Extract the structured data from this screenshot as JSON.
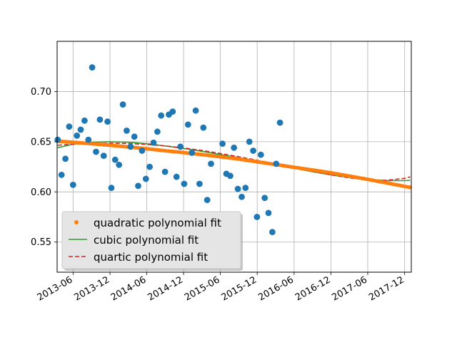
{
  "chart_data": {
    "type": "scatter",
    "ylim": [
      0.52,
      0.75
    ],
    "xlim": [
      "2013-03-14",
      "2018-01-03"
    ],
    "grid": true,
    "legend_position": "lower-left",
    "y_ticks": [
      0.55,
      0.6,
      0.65,
      0.7
    ],
    "y_tick_labels": [
      "0.55",
      "0.60",
      "0.65",
      "0.70"
    ],
    "x_ticks": [
      "2013-06-01",
      "2013-12-01",
      "2014-06-01",
      "2014-12-01",
      "2015-06-01",
      "2015-12-01",
      "2016-06-01",
      "2016-12-01",
      "2017-06-01",
      "2017-12-01"
    ],
    "x_tick_labels": [
      "2013-06",
      "2013-12",
      "2014-06",
      "2014-12",
      "2015-06",
      "2015-12",
      "2016-06",
      "2016-12",
      "2017-06",
      "2017-12"
    ],
    "colors": {
      "points": "#1f77b4",
      "quadratic": "#ff7f0e",
      "cubic": "#2ca02c",
      "quartic": "#d62728",
      "grid": "#b0b0b0"
    },
    "scatter_points": [
      [
        "2013-03-17",
        0.652
      ],
      [
        "2013-04-05",
        0.617
      ],
      [
        "2013-04-24",
        0.633
      ],
      [
        "2013-05-13",
        0.665
      ],
      [
        "2013-06-01",
        0.607
      ],
      [
        "2013-06-20",
        0.656
      ],
      [
        "2013-07-09",
        0.662
      ],
      [
        "2013-07-28",
        0.671
      ],
      [
        "2013-08-16",
        0.652
      ],
      [
        "2013-09-04",
        0.724
      ],
      [
        "2013-09-23",
        0.64
      ],
      [
        "2013-10-12",
        0.672
      ],
      [
        "2013-10-31",
        0.636
      ],
      [
        "2013-11-19",
        0.67
      ],
      [
        "2013-12-08",
        0.604
      ],
      [
        "2013-12-27",
        0.632
      ],
      [
        "2014-01-15",
        0.627
      ],
      [
        "2014-02-03",
        0.687
      ],
      [
        "2014-02-22",
        0.661
      ],
      [
        "2014-03-13",
        0.645
      ],
      [
        "2014-04-01",
        0.655
      ],
      [
        "2014-04-20",
        0.606
      ],
      [
        "2014-05-09",
        0.641
      ],
      [
        "2014-05-28",
        0.613
      ],
      [
        "2014-06-16",
        0.625
      ],
      [
        "2014-07-05",
        0.649
      ],
      [
        "2014-07-24",
        0.66
      ],
      [
        "2014-08-12",
        0.676
      ],
      [
        "2014-08-31",
        0.62
      ],
      [
        "2014-09-19",
        0.677
      ],
      [
        "2014-10-08",
        0.68
      ],
      [
        "2014-10-27",
        0.615
      ],
      [
        "2014-11-15",
        0.645
      ],
      [
        "2014-12-04",
        0.608
      ],
      [
        "2014-12-23",
        0.667
      ],
      [
        "2015-01-11",
        0.639
      ],
      [
        "2015-01-30",
        0.681
      ],
      [
        "2015-02-18",
        0.608
      ],
      [
        "2015-03-09",
        0.664
      ],
      [
        "2015-03-28",
        0.592
      ],
      [
        "2015-04-16",
        0.628
      ],
      [
        "2015-05-05",
        0.568
      ],
      [
        "2015-05-24",
        0.577
      ],
      [
        "2015-06-12",
        0.648
      ],
      [
        "2015-07-01",
        0.618
      ],
      [
        "2015-07-20",
        0.616
      ],
      [
        "2015-08-08",
        0.644
      ],
      [
        "2015-08-27",
        0.603
      ],
      [
        "2015-09-15",
        0.595
      ],
      [
        "2015-10-04",
        0.604
      ],
      [
        "2015-10-23",
        0.65
      ],
      [
        "2015-11-11",
        0.641
      ],
      [
        "2015-11-30",
        0.575
      ],
      [
        "2015-12-19",
        0.637
      ],
      [
        "2016-01-07",
        0.594
      ],
      [
        "2016-01-26",
        0.579
      ],
      [
        "2016-02-14",
        0.56
      ],
      [
        "2016-03-04",
        0.628
      ],
      [
        "2016-03-23",
        0.669
      ]
    ],
    "series": [
      {
        "name": "quadratic polynomial fit",
        "style": "dots",
        "points": [
          [
            "2013-03-17",
            0.6505
          ],
          [
            "2013-06-01",
            0.6495
          ],
          [
            "2013-09-01",
            0.648
          ],
          [
            "2013-12-01",
            0.6465
          ],
          [
            "2014-03-01",
            0.6448
          ],
          [
            "2014-06-01",
            0.643
          ],
          [
            "2014-09-01",
            0.641
          ],
          [
            "2014-12-01",
            0.6392
          ],
          [
            "2015-03-01",
            0.6372
          ],
          [
            "2015-06-01",
            0.635
          ],
          [
            "2015-09-01",
            0.6327
          ],
          [
            "2015-12-01",
            0.63
          ],
          [
            "2016-03-01",
            0.6273
          ],
          [
            "2016-06-01",
            0.6245
          ],
          [
            "2016-09-01",
            0.6218
          ],
          [
            "2016-12-01",
            0.619
          ],
          [
            "2017-03-01",
            0.6158
          ],
          [
            "2017-06-01",
            0.6125
          ],
          [
            "2017-09-01",
            0.609
          ],
          [
            "2017-12-01",
            0.6055
          ],
          [
            "2017-12-28",
            0.6045
          ]
        ]
      },
      {
        "name": "cubic polynomial fit",
        "style": "solid",
        "points": [
          [
            "2013-03-17",
            0.644
          ],
          [
            "2013-06-01",
            0.6475
          ],
          [
            "2013-09-01",
            0.6495
          ],
          [
            "2013-12-01",
            0.65
          ],
          [
            "2014-03-01",
            0.6495
          ],
          [
            "2014-06-01",
            0.648
          ],
          [
            "2014-09-01",
            0.6458
          ],
          [
            "2014-12-01",
            0.6432
          ],
          [
            "2015-03-01",
            0.6405
          ],
          [
            "2015-06-01",
            0.6372
          ],
          [
            "2015-09-01",
            0.634
          ],
          [
            "2015-12-01",
            0.6305
          ],
          [
            "2016-03-01",
            0.627
          ],
          [
            "2016-06-01",
            0.6235
          ],
          [
            "2016-09-01",
            0.62
          ],
          [
            "2016-12-01",
            0.617
          ],
          [
            "2017-03-01",
            0.6145
          ],
          [
            "2017-06-01",
            0.6125
          ],
          [
            "2017-09-01",
            0.6113
          ],
          [
            "2017-12-01",
            0.6112
          ],
          [
            "2017-12-28",
            0.6115
          ]
        ]
      },
      {
        "name": "quartic polynomial fit",
        "style": "dashed",
        "points": [
          [
            "2013-03-17",
            0.6465
          ],
          [
            "2013-06-01",
            0.6475
          ],
          [
            "2013-09-01",
            0.6482
          ],
          [
            "2013-12-01",
            0.6485
          ],
          [
            "2014-03-01",
            0.6482
          ],
          [
            "2014-06-01",
            0.6473
          ],
          [
            "2014-09-01",
            0.6458
          ],
          [
            "2014-12-01",
            0.6438
          ],
          [
            "2015-03-01",
            0.6413
          ],
          [
            "2015-06-01",
            0.6383
          ],
          [
            "2015-09-01",
            0.635
          ],
          [
            "2015-12-01",
            0.6315
          ],
          [
            "2016-03-01",
            0.6278
          ],
          [
            "2016-06-01",
            0.624
          ],
          [
            "2016-09-01",
            0.6203
          ],
          [
            "2016-12-01",
            0.617
          ],
          [
            "2017-03-01",
            0.614
          ],
          [
            "2017-06-01",
            0.6118
          ],
          [
            "2017-09-01",
            0.6115
          ],
          [
            "2017-12-01",
            0.6135
          ],
          [
            "2017-12-28",
            0.615
          ]
        ]
      }
    ]
  }
}
